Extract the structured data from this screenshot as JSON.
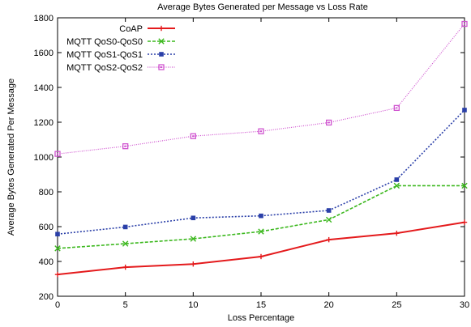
{
  "chart_data": {
    "type": "line",
    "title": "Average Bytes Generated per Message vs Loss Rate",
    "xlabel": "Loss Percentage",
    "ylabel": "Average Bytes Generated Per Message",
    "xlim": [
      0,
      30
    ],
    "ylim": [
      200,
      1800
    ],
    "x_ticks": [
      0,
      5,
      10,
      15,
      20,
      25,
      30
    ],
    "y_ticks": [
      200,
      400,
      600,
      800,
      1000,
      1200,
      1400,
      1600,
      1800
    ],
    "grid": false,
    "legend_position": "top-left",
    "x": [
      0,
      5,
      10,
      15,
      20,
      25,
      30
    ],
    "series": [
      {
        "name": "CoAP",
        "color": "#e41a1c",
        "dash": "solid",
        "marker": "plus",
        "values": [
          325,
          367,
          385,
          428,
          525,
          562,
          625
        ]
      },
      {
        "name": "MQTT QoS0-QoS0",
        "color": "#3cb81e",
        "dash": "dashed",
        "marker": "cross",
        "values": [
          475,
          502,
          530,
          572,
          640,
          835,
          835
        ]
      },
      {
        "name": "MQTT QoS1-QoS1",
        "color": "#2a3fa8",
        "dash": "dotted",
        "marker": "square-filled",
        "values": [
          557,
          598,
          650,
          662,
          693,
          870,
          1270
        ]
      },
      {
        "name": "MQTT QoS2-QoS2",
        "color": "#d055d0",
        "dash": "dotted-fine",
        "marker": "square-open",
        "values": [
          1018,
          1062,
          1120,
          1148,
          1198,
          1282,
          1765
        ]
      }
    ]
  }
}
